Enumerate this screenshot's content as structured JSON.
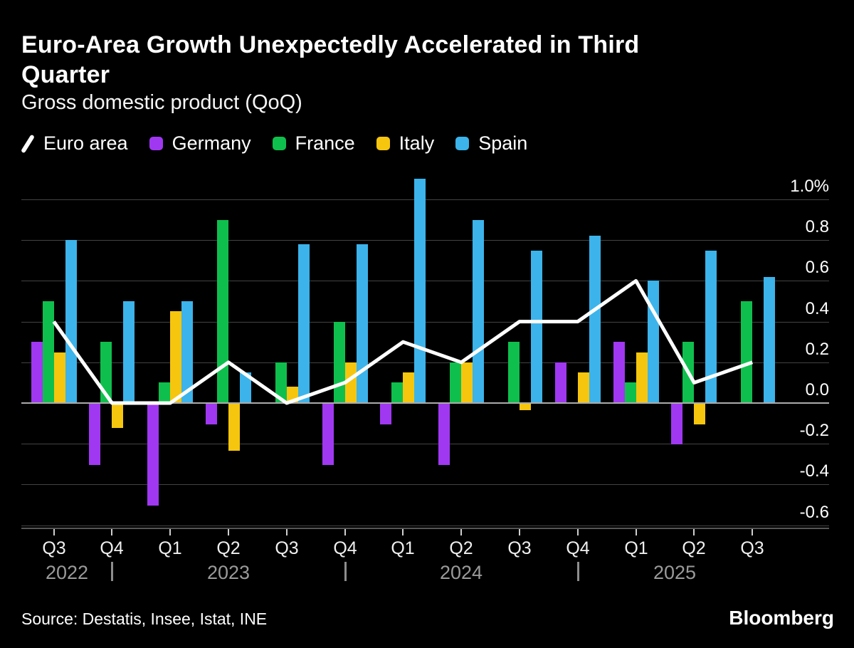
{
  "header": {
    "title_lines": [
      "Euro-Area Growth Unexpectedly Accelerated in Third",
      "Quarter"
    ],
    "subtitle": "Gross domestic product (QoQ)"
  },
  "legend": [
    {
      "label": "Euro area",
      "type": "line",
      "color": "#FFFFFF"
    },
    {
      "label": "Germany",
      "type": "swatch",
      "color": "#A038F2"
    },
    {
      "label": "France",
      "type": "swatch",
      "color": "#0FBF4D"
    },
    {
      "label": "Italy",
      "type": "swatch",
      "color": "#F6C60E"
    },
    {
      "label": "Spain",
      "type": "swatch",
      "color": "#3CB3EA"
    }
  ],
  "chart_data": {
    "type": "bar",
    "title": "Euro-Area Growth Unexpectedly Accelerated in Third Quarter",
    "subtitle": "Gross domestic product (QoQ)",
    "categories": [
      "Q3 2022",
      "Q4 2022",
      "Q1 2023",
      "Q2 2023",
      "Q3 2023",
      "Q4 2023",
      "Q1 2024",
      "Q2 2024",
      "Q3 2024",
      "Q4 2024",
      "Q1 2025",
      "Q2 2025",
      "Q3 2025"
    ],
    "x_tick_labels": [
      "Q3",
      "Q4",
      "Q1",
      "Q2",
      "Q3",
      "Q4",
      "Q1",
      "Q2",
      "Q3",
      "Q4",
      "Q1",
      "Q2",
      "Q3"
    ],
    "years": [
      {
        "label": "2022",
        "from": 0,
        "to": 1
      },
      {
        "label": "2023",
        "from": 2,
        "to": 5
      },
      {
        "label": "2024",
        "from": 6,
        "to": 9
      },
      {
        "label": "2025",
        "from": 10,
        "to": 12
      }
    ],
    "series": [
      {
        "name": "Euro area",
        "type": "line",
        "color": "#FFFFFF",
        "values": [
          0.4,
          0.0,
          0.0,
          0.2,
          0.0,
          0.1,
          0.3,
          0.2,
          0.4,
          0.4,
          0.6,
          0.1,
          0.2
        ]
      },
      {
        "name": "Germany",
        "type": "bar",
        "color": "#A038F2",
        "values": [
          0.3,
          -0.3,
          -0.5,
          -0.1,
          0.0,
          -0.3,
          -0.1,
          -0.3,
          0.0,
          0.2,
          0.3,
          -0.2,
          0.0
        ]
      },
      {
        "name": "France",
        "type": "bar",
        "color": "#0FBF4D",
        "values": [
          0.5,
          0.3,
          0.1,
          0.9,
          0.2,
          0.4,
          0.1,
          0.2,
          0.3,
          0.0,
          0.1,
          0.3,
          0.5
        ]
      },
      {
        "name": "Italy",
        "type": "bar",
        "color": "#F6C60E",
        "values": [
          0.25,
          -0.12,
          0.45,
          -0.23,
          0.08,
          0.2,
          0.15,
          0.2,
          -0.03,
          0.15,
          0.25,
          -0.1,
          0.0
        ]
      },
      {
        "name": "Spain",
        "type": "bar",
        "color": "#3CB3EA",
        "values": [
          0.8,
          0.5,
          0.5,
          0.15,
          0.78,
          0.78,
          1.1,
          0.9,
          0.75,
          0.82,
          0.6,
          0.75,
          0.62
        ]
      }
    ],
    "y_axis": {
      "max": 1.0,
      "min": -0.6,
      "step": 0.2,
      "unit": "%"
    },
    "y_tick_labels": [
      "1.0%",
      "0.8",
      "0.6",
      "0.4",
      "0.2",
      "0.0",
      "-0.2",
      "-0.4",
      "-0.6"
    ],
    "xlabel": "",
    "ylabel": "",
    "grid": true,
    "legend_position": "top"
  },
  "footer": {
    "source": "Source: Destatis, Insee, Istat, INE",
    "brand": "Bloomberg"
  }
}
